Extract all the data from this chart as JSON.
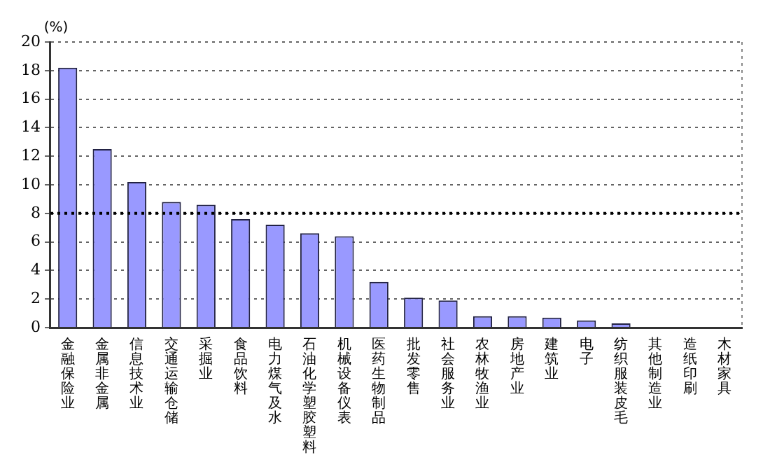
{
  "chart_data": {
    "type": "bar",
    "ylabel": "(%)",
    "categories": [
      "金融保险业",
      "金属非金属",
      "信息技术业",
      "交通运输仓储",
      "采掘业",
      "食品饮料",
      "电力煤气及水",
      "石油化学塑胶塑料",
      "机械设备仪表",
      "医药生物制品",
      "批发零售",
      "社会服务业",
      "农林牧渔业",
      "房地产业",
      "建筑业",
      "电子",
      "纺织服装皮毛",
      "其他制造业",
      "造纸印刷",
      "木材家具"
    ],
    "values": [
      18.2,
      12.5,
      10.2,
      8.8,
      8.6,
      7.6,
      7.2,
      6.6,
      6.4,
      3.2,
      2.1,
      1.9,
      0.8,
      0.8,
      0.7,
      0.5,
      0.3,
      0,
      0,
      0
    ],
    "color": "#9999ff",
    "ylim": [
      0,
      20
    ],
    "yticks": [
      0,
      2,
      4,
      6,
      8,
      10,
      12,
      14,
      16,
      18,
      20
    ],
    "grid": "y",
    "ref_lines": [
      {
        "axis": "y",
        "value": 8,
        "color": "#000000",
        "line_style": "dotted"
      }
    ]
  }
}
